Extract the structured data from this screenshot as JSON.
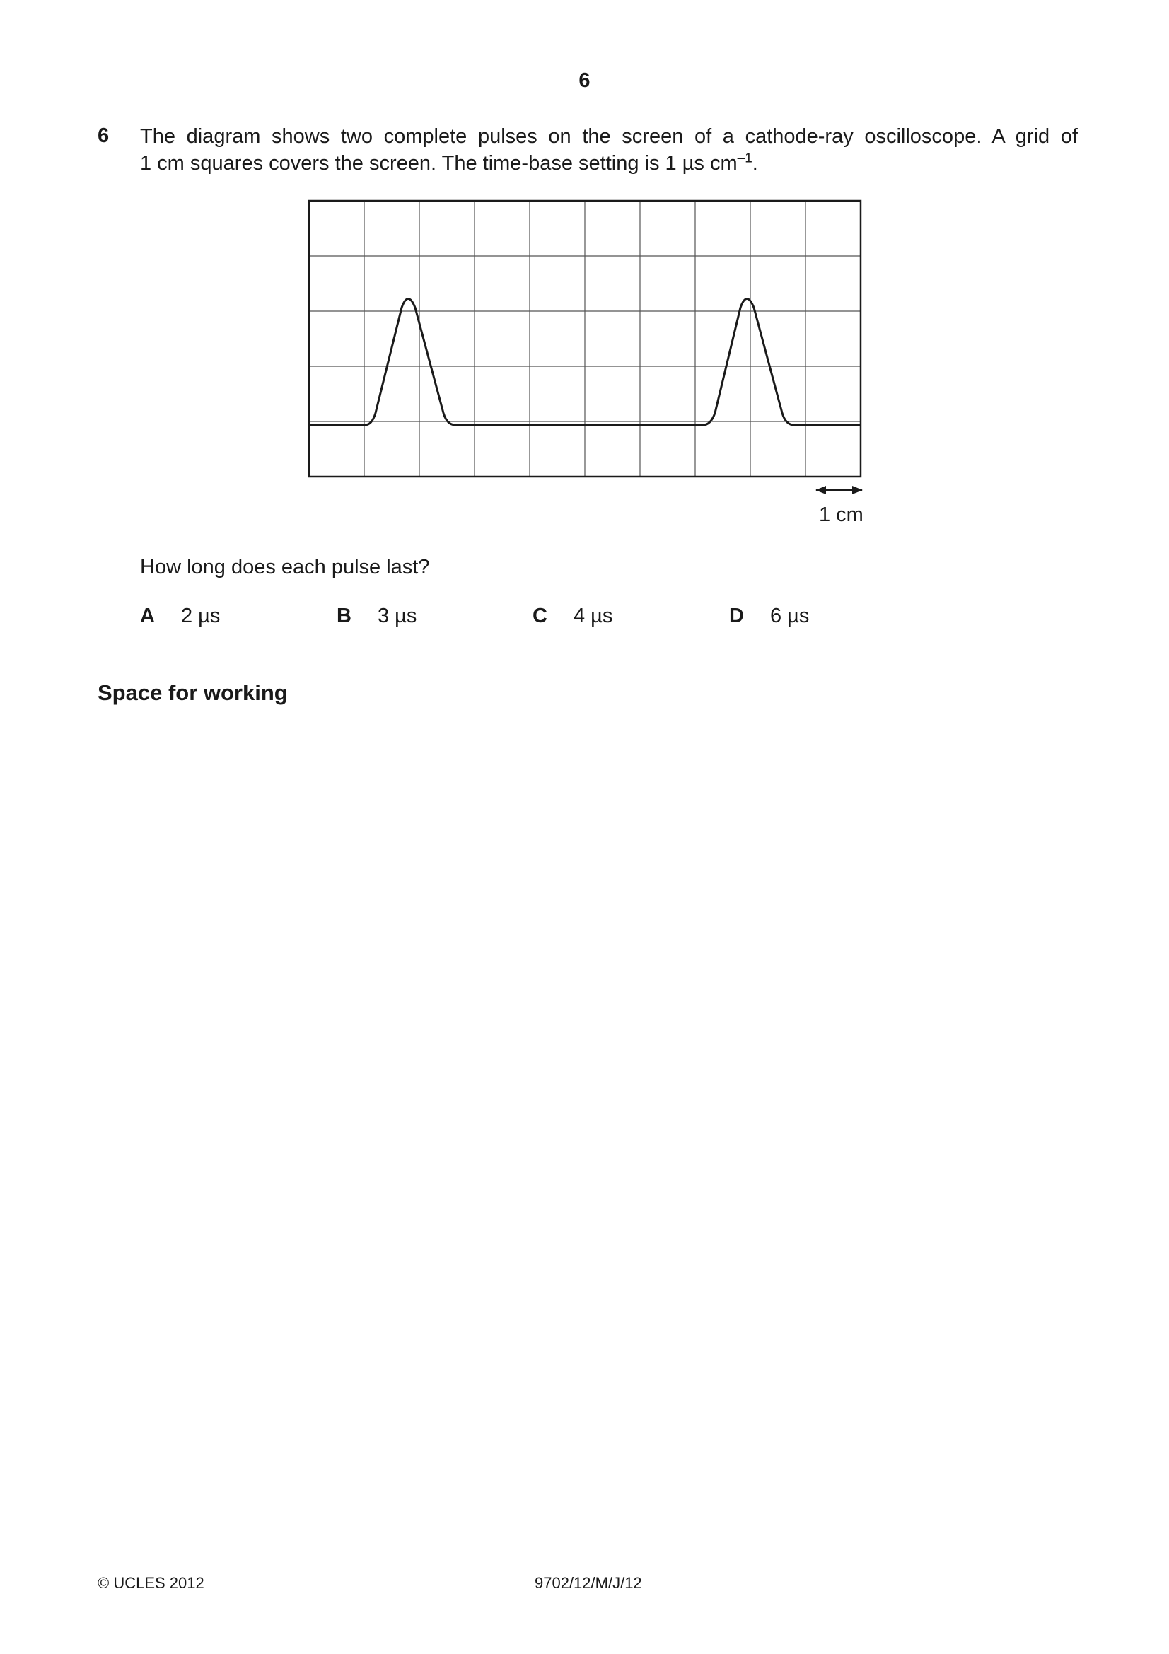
{
  "page": {
    "number": "6"
  },
  "question": {
    "number": "6",
    "text_line1": "The diagram shows two complete pulses on the screen of a cathode-ray oscilloscope. A grid of",
    "text_line2_pre": "1 cm squares covers the screen. The time-base setting is 1 µs cm",
    "text_line2_sup": "–1",
    "text_line2_post": ".",
    "prompt": "How long does each pulse last?"
  },
  "diagram": {
    "scale_label": "1 cm",
    "grid_columns": 10,
    "grid_rows": 5
  },
  "options": [
    {
      "letter": "A",
      "value": "2 µs"
    },
    {
      "letter": "B",
      "value": "3 µs"
    },
    {
      "letter": "C",
      "value": "4 µs"
    },
    {
      "letter": "D",
      "value": "6 µs"
    }
  ],
  "working": {
    "label": "Space for working"
  },
  "footer": {
    "copyright": "© UCLES 2012",
    "code": "9702/12/M/J/12"
  }
}
